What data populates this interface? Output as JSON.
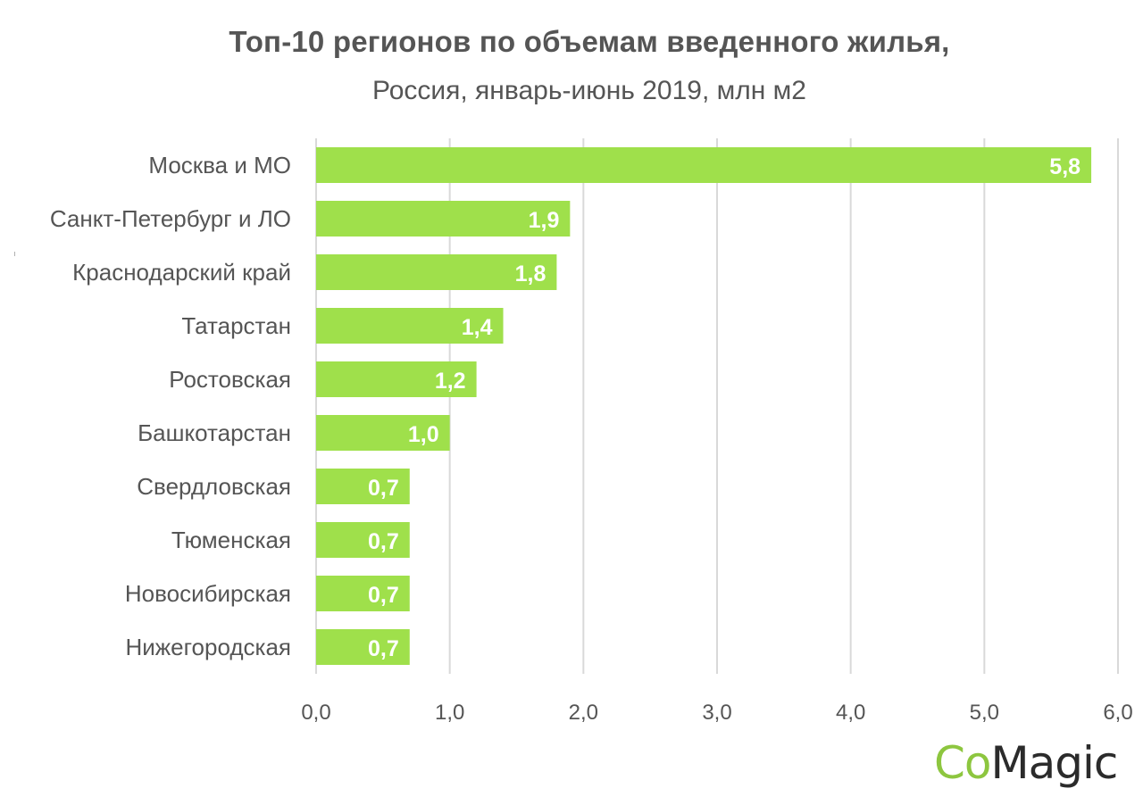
{
  "chart_data": {
    "type": "bar",
    "orientation": "horizontal",
    "title": "Топ-10 регионов по объемам введенного жилья,",
    "subtitle": "Россия, январь-июнь 2019, млн м2",
    "categories": [
      "Москва и МО",
      "Санкт-Петербург и ЛО",
      "Краснодарский край",
      "Татарстан",
      "Ростовская",
      "Башкотарстан",
      "Свердловская",
      "Тюменская",
      "Новосибирская",
      "Нижегородская"
    ],
    "values": [
      5.8,
      1.9,
      1.8,
      1.4,
      1.2,
      1.0,
      0.7,
      0.7,
      0.7,
      0.7
    ],
    "value_labels": [
      "5,8",
      "1,9",
      "1,8",
      "1,4",
      "1,2",
      "1,0",
      "0,7",
      "0,7",
      "0,7",
      "0,7"
    ],
    "xlim": [
      0,
      6
    ],
    "x_ticks": [
      "0,0",
      "1,0",
      "2,0",
      "3,0",
      "4,0",
      "5,0",
      "6,0"
    ],
    "grid": "vertical",
    "bar_color": "#9fe04b"
  },
  "logo": {
    "part1": "Co",
    "part2": "Magic"
  }
}
